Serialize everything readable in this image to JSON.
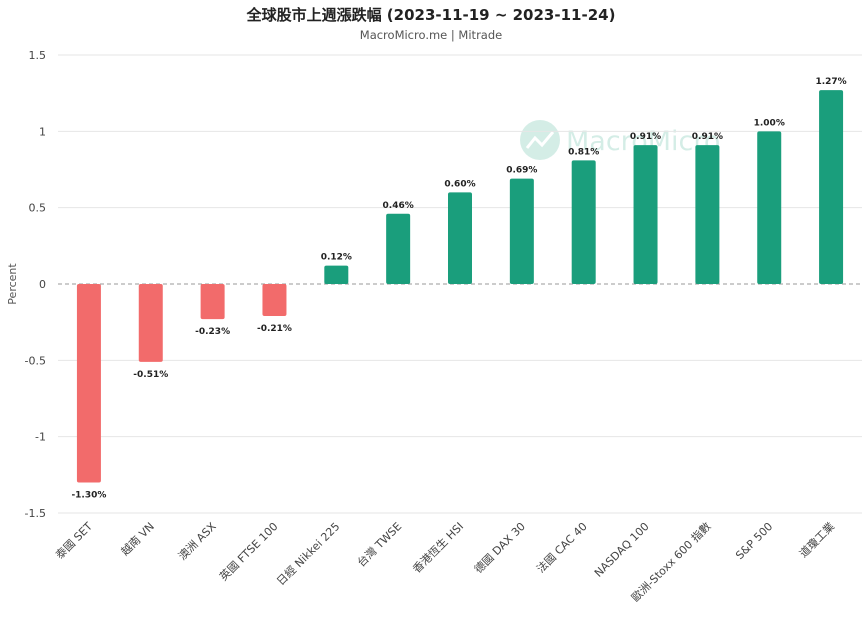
{
  "chart_data": {
    "type": "bar",
    "title": "全球股市上週漲跌幅 (2023-11-19 ~ 2023-11-24)",
    "subtitle": "MacroMicro.me | Mitrade",
    "ylabel": "Percent",
    "xlabel": "",
    "ylim": [
      -1.5,
      1.5
    ],
    "yticks": [
      -1.5,
      -1,
      -0.5,
      0,
      0.5,
      1,
      1.5
    ],
    "grid": true,
    "legend": "none",
    "categories": [
      "泰國 SET",
      "越南 VN",
      "澳洲 ASX",
      "英國 FTSE 100",
      "日經 Nikkei 225",
      "台灣 TWSE",
      "香港恆生 HSI",
      "德國 DAX 30",
      "法國 CAC 40",
      "NASDAQ 100",
      "歐洲-Stoxx 600 指數",
      "S&P 500",
      "道瓊工業"
    ],
    "values": [
      -1.3,
      -0.51,
      -0.23,
      -0.21,
      0.12,
      0.46,
      0.6,
      0.69,
      0.81,
      0.91,
      0.91,
      1.0,
      1.27
    ],
    "data_labels": [
      "-1.30%",
      "-0.51%",
      "-0.23%",
      "-0.21%",
      "0.12%",
      "0.46%",
      "0.60%",
      "0.69%",
      "0.81%",
      "0.91%",
      "0.91%",
      "1.00%",
      "1.27%"
    ],
    "colors": {
      "positive": "#1a9e7c",
      "negative": "#f26b6b",
      "grid": "#e6e6e6",
      "zero_line": "#999999"
    }
  },
  "watermark": {
    "text": "MacroMicro",
    "icon": "macromicro-logo-icon"
  }
}
